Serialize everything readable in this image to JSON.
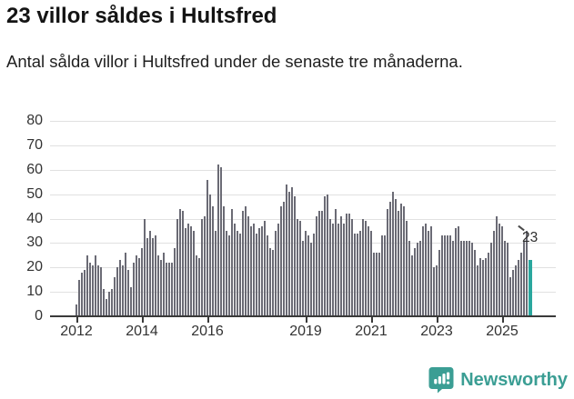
{
  "header": {
    "title": "23 villor såldes i Hultsfred",
    "subtitle": "Antal sålda villor i Hultsfred under de senaste tre månaderna."
  },
  "chart_data": {
    "type": "bar",
    "title": "23 villor såldes i Hultsfred",
    "subtitle": "Antal sålda villor i Hultsfred under de senaste tre månaderna.",
    "xlabel": "",
    "ylabel": "",
    "ylim": [
      0,
      80
    ],
    "grid": true,
    "frequency": "monthly (rolling 3-month sum)",
    "start": "2012-01",
    "end": "2025-11",
    "bar_color": "#6b6b75",
    "y_ticks": [
      0,
      10,
      20,
      30,
      40,
      50,
      60,
      70,
      80
    ],
    "x_ticks": [
      {
        "label": "2012",
        "month_index": 0
      },
      {
        "label": "2014",
        "month_index": 24
      },
      {
        "label": "2016",
        "month_index": 48
      },
      {
        "label": "2019",
        "month_index": 84
      },
      {
        "label": "2021",
        "month_index": 108
      },
      {
        "label": "2023",
        "month_index": 132
      },
      {
        "label": "2025",
        "month_index": 156
      }
    ],
    "values": [
      5,
      15,
      18,
      19,
      25,
      22,
      21,
      25,
      21,
      20,
      11,
      7,
      10,
      11,
      16,
      20,
      23,
      21,
      26,
      19,
      12,
      22,
      25,
      24,
      28,
      40,
      32,
      35,
      32,
      33,
      25,
      23,
      26,
      22,
      22,
      22,
      28,
      40,
      44,
      43,
      36,
      38,
      37,
      35,
      25,
      24,
      40,
      41,
      56,
      50,
      45,
      35,
      62,
      61,
      45,
      35,
      33,
      44,
      38,
      35,
      34,
      43,
      45,
      41,
      37,
      38,
      34,
      36,
      37,
      39,
      33,
      28,
      27,
      35,
      38,
      45,
      47,
      54,
      51,
      53,
      49,
      40,
      39,
      31,
      35,
      33,
      30,
      34,
      41,
      43,
      43,
      49,
      50,
      40,
      38,
      44,
      38,
      41,
      38,
      42,
      42,
      40,
      34,
      34,
      35,
      40,
      39,
      37,
      35,
      26,
      26,
      26,
      33,
      33,
      44,
      47,
      51,
      48,
      43,
      46,
      45,
      39,
      31,
      25,
      28,
      30,
      31,
      37,
      38,
      35,
      37,
      20,
      21,
      27,
      33,
      33,
      33,
      33,
      31,
      36,
      37,
      31,
      31,
      31,
      31,
      30,
      27,
      21,
      24,
      23,
      24,
      26,
      30,
      35,
      41,
      38,
      37,
      31,
      30,
      16,
      19,
      21,
      23,
      26,
      31,
      35,
      23
    ],
    "highlight": {
      "index": 166,
      "value": 23,
      "label": "23",
      "color": "#2aa79e"
    }
  },
  "footer": {
    "brand": "Newsworthy",
    "brand_color": "#3b9e94",
    "logo": "newsworthy-chart-bubble-icon"
  }
}
